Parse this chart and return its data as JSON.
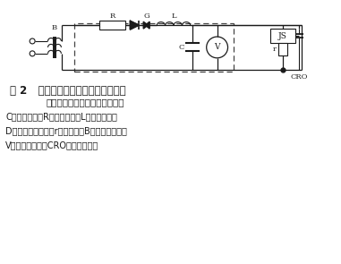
{
  "title_line1": "图 2   标准冲击电流检测法的原理接线",
  "title_line2": "（虚线框内为冲击电流发生器）",
  "desc_line1": "C－充电电容；R－充电电阻；L－阻尼电感；",
  "desc_line2": "D－整流硅二极管；r－分流器；B－试验变压器；",
  "desc_line3": "V－静电电压表；CRO－高压示波器",
  "bg_color": "#ffffff"
}
